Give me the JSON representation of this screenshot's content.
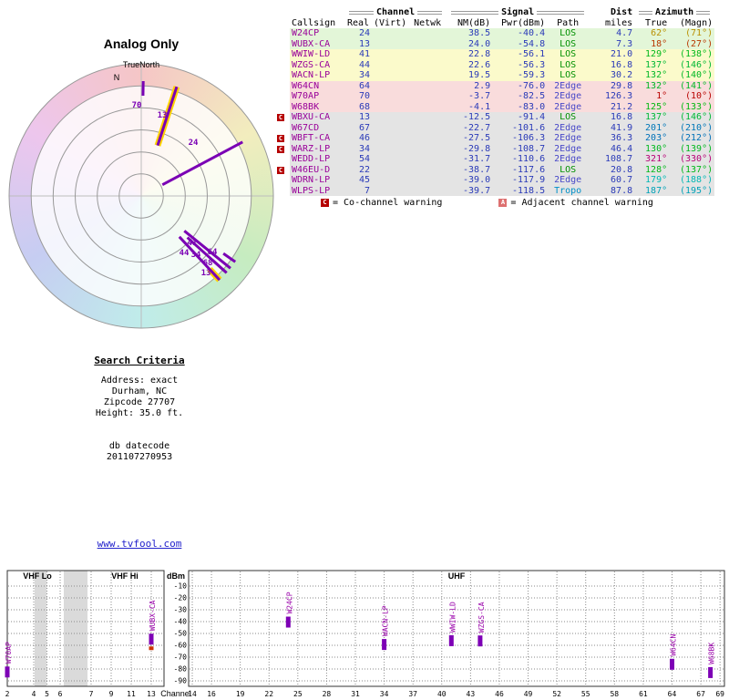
{
  "page": {
    "link": "www.tvfool.com"
  },
  "colors": {
    "callsign": "#990099",
    "numbers": "#2a3ab8",
    "path_los": "#009000",
    "path_2edge": "#4848c8",
    "path_tropo": "#0090c8",
    "warning_co": "#b50000",
    "warning_adjacent": "#dd7070",
    "station_marker": "#7d00b5",
    "station_label": "#9900aa",
    "spoke": "#7a00b4",
    "spoke_highlight": "#ffd400",
    "link": "#2222cc"
  },
  "polar": {
    "title": "Analog Only",
    "true_north_label": "TrueNorth",
    "north_label": "N"
  },
  "table": {
    "groups": {
      "channel": "Channel",
      "signal": "Signal",
      "dist": "Dist",
      "azimuth": "Azimuth"
    },
    "headers": {
      "callsign": "Callsign",
      "real": "Real",
      "virt": "(Virt)",
      "netwk": "Netwk",
      "nm": "NM(dB)",
      "pwr": "Pwr(dBm)",
      "path": "Path",
      "miles": "miles",
      "true_az": "True",
      "magn": "(Magn)"
    },
    "rows": [
      {
        "warnings": [],
        "callsign": "W24CP",
        "real": "24",
        "virt": "",
        "netwk": "",
        "nm": "38.5",
        "pwr": "-40.4",
        "path": "LOS",
        "miles": "4.7",
        "true_az": "62°",
        "magn": "(71°)",
        "band": "strong",
        "az_color": "#b99000"
      },
      {
        "warnings": [],
        "callsign": "WUBX-CA",
        "real": "13",
        "virt": "",
        "netwk": "",
        "nm": "24.0",
        "pwr": "-54.8",
        "path": "LOS",
        "miles": "7.3",
        "true_az": "18°",
        "magn": "(27°)",
        "band": "strong",
        "az_color": "#b83700"
      },
      {
        "warnings": [],
        "callsign": "WWIW-LD",
        "real": "41",
        "virt": "",
        "netwk": "",
        "nm": "22.8",
        "pwr": "-56.1",
        "path": "LOS",
        "miles": "21.0",
        "true_az": "129°",
        "magn": "(138°)",
        "band": "moderate",
        "az_color": "#00b81c"
      },
      {
        "warnings": [],
        "callsign": "WZGS-CA",
        "real": "44",
        "virt": "",
        "netwk": "",
        "nm": "22.6",
        "pwr": "-56.3",
        "path": "LOS",
        "miles": "16.8",
        "true_az": "137°",
        "magn": "(146°)",
        "band": "moderate",
        "az_color": "#00b834"
      },
      {
        "warnings": [],
        "callsign": "WACN-LP",
        "real": "34",
        "virt": "",
        "netwk": "",
        "nm": "19.5",
        "pwr": "-59.3",
        "path": "LOS",
        "miles": "30.2",
        "true_az": "132°",
        "magn": "(140°)",
        "band": "moderate",
        "az_color": "#00b824"
      },
      {
        "warnings": [],
        "callsign": "W64CN",
        "real": "64",
        "virt": "",
        "netwk": "",
        "nm": "2.9",
        "pwr": "-76.0",
        "path": "2Edge",
        "miles": "29.8",
        "true_az": "132°",
        "magn": "(141°)",
        "band": "weak",
        "az_color": "#00b824"
      },
      {
        "warnings": [],
        "callsign": "W70AP",
        "real": "70",
        "virt": "",
        "netwk": "",
        "nm": "-3.7",
        "pwr": "-82.5",
        "path": "2Edge",
        "miles": "126.3",
        "true_az": "1°",
        "magn": "(10°)",
        "band": "weak",
        "az_color": "#b80300"
      },
      {
        "warnings": [],
        "callsign": "W68BK",
        "real": "68",
        "virt": "",
        "netwk": "",
        "nm": "-4.1",
        "pwr": "-83.0",
        "path": "2Edge",
        "miles": "21.2",
        "true_az": "125°",
        "magn": "(133°)",
        "band": "weak",
        "az_color": "#00b80f"
      },
      {
        "warnings": [
          "C"
        ],
        "callsign": "WBXU-CA",
        "real": "13",
        "virt": "",
        "netwk": "",
        "nm": "-12.5",
        "pwr": "-91.4",
        "path": "LOS",
        "miles": "16.8",
        "true_az": "137°",
        "magn": "(146°)",
        "band": "poor",
        "az_color": "#00b834"
      },
      {
        "warnings": [],
        "callsign": "W67CD",
        "real": "67",
        "virt": "",
        "netwk": "",
        "nm": "-22.7",
        "pwr": "-101.6",
        "path": "2Edge",
        "miles": "41.9",
        "true_az": "201°",
        "magn": "(210°)",
        "band": "poor",
        "az_color": "#0077b8"
      },
      {
        "warnings": [
          "C"
        ],
        "callsign": "WBFT-CA",
        "real": "46",
        "virt": "",
        "netwk": "",
        "nm": "-27.5",
        "pwr": "-106.3",
        "path": "2Edge",
        "miles": "36.3",
        "true_az": "203°",
        "magn": "(212°)",
        "band": "poor",
        "az_color": "#0071b8"
      },
      {
        "warnings": [
          "C"
        ],
        "callsign": "WARZ-LP",
        "real": "34",
        "virt": "",
        "netwk": "",
        "nm": "-29.8",
        "pwr": "-108.7",
        "path": "2Edge",
        "miles": "46.4",
        "true_az": "130°",
        "magn": "(139°)",
        "band": "poor",
        "az_color": "#00b81f"
      },
      {
        "warnings": [],
        "callsign": "WEDD-LP",
        "real": "54",
        "virt": "",
        "netwk": "",
        "nm": "-31.7",
        "pwr": "-110.6",
        "path": "2Edge",
        "miles": "108.7",
        "true_az": "321°",
        "magn": "(330°)",
        "band": "poor",
        "az_color": "#b80077"
      },
      {
        "warnings": [
          "C"
        ],
        "callsign": "W46EU-D",
        "real": "22",
        "virt": "",
        "netwk": "",
        "nm": "-38.7",
        "pwr": "-117.6",
        "path": "LOS",
        "miles": "20.8",
        "true_az": "128°",
        "magn": "(137°)",
        "band": "poor",
        "az_color": "#00b818"
      },
      {
        "warnings": [],
        "callsign": "WDRN-LP",
        "real": "45",
        "virt": "",
        "netwk": "",
        "nm": "-39.0",
        "pwr": "-117.9",
        "path": "2Edge",
        "miles": "60.7",
        "true_az": "179°",
        "magn": "(188°)",
        "band": "poor",
        "az_color": "#00b8b4"
      },
      {
        "warnings": [],
        "callsign": "WLPS-LP",
        "real": "7",
        "virt": "",
        "netwk": "",
        "nm": "-39.7",
        "pwr": "-118.5",
        "path": "Tropo",
        "miles": "87.8",
        "true_az": "187°",
        "magn": "(195°)",
        "band": "poor",
        "az_color": "#00a2b8"
      }
    ]
  },
  "legend": {
    "c_symbol": "C",
    "c_text": "= Co-channel warning",
    "a_symbol": "A",
    "a_text": "= Adjacent channel warning"
  },
  "search": {
    "heading": "Search Criteria",
    "lines": [
      "Address: exact",
      "Durham, NC",
      "Zipcode 27707",
      "Height: 35.0 ft."
    ],
    "datecode": [
      "db datecode",
      "201107270953"
    ]
  },
  "chart_data": [
    {
      "type": "scatter",
      "subtype": "polar-azimuth-plot",
      "title": "Analog Only",
      "orientation_labels": {
        "axis": "TrueNorth",
        "north": "N"
      },
      "series": [
        {
          "name": "analog stations (channel label @ azimuth deg, strength NM dB)",
          "points": [
            {
              "label": "70",
              "azimuth_deg": 1,
              "nm_db": -3.7,
              "highlight": false
            },
            {
              "label": "13",
              "azimuth_deg": 18,
              "nm_db": 24.0,
              "highlight": true
            },
            {
              "label": "24",
              "azimuth_deg": 62,
              "nm_db": 38.5,
              "highlight": false
            },
            {
              "label": "41",
              "azimuth_deg": 129,
              "nm_db": 22.8,
              "highlight": false
            },
            {
              "label": "44",
              "azimuth_deg": 137,
              "nm_db": 22.6,
              "highlight": false
            },
            {
              "label": "34",
              "azimuth_deg": 132,
              "nm_db": 19.5,
              "highlight": false
            },
            {
              "label": "64",
              "azimuth_deg": 132,
              "nm_db": 2.9,
              "highlight": false
            },
            {
              "label": "68",
              "azimuth_deg": 125,
              "nm_db": -4.1,
              "highlight": false
            },
            {
              "label": "13",
              "azimuth_deg": 137,
              "nm_db": -12.5,
              "highlight": true
            }
          ]
        }
      ]
    },
    {
      "type": "scatter",
      "title": "",
      "xlabel": "Channel",
      "ylabel": "dBm",
      "ylim": [
        -95,
        -5
      ],
      "y_ticks": [
        -10,
        -20,
        -30,
        -40,
        -50,
        -60,
        -70,
        -80,
        -90
      ],
      "sections": [
        "VHF Lo",
        "VHF Hi",
        "UHF"
      ],
      "x_ticks_vhf": [
        2,
        4,
        5,
        6,
        7,
        9,
        11,
        13
      ],
      "x_ticks_uhf": [
        14,
        16,
        19,
        22,
        25,
        28,
        31,
        34,
        37,
        40,
        43,
        46,
        49,
        52,
        55,
        58,
        61,
        64,
        67,
        69
      ],
      "points": [
        {
          "label": "W70AP",
          "channel": 70,
          "dbm": -82.5,
          "at_left_edge": true
        },
        {
          "label": "WUBX-CA",
          "channel": 13,
          "dbm": -54.8,
          "warning_tick": true
        },
        {
          "label": "W24CP",
          "channel": 24,
          "dbm": -40.4
        },
        {
          "label": "WACN-LP",
          "channel": 34,
          "dbm": -59.3
        },
        {
          "label": "WWIW-LD",
          "channel": 41,
          "dbm": -56.1
        },
        {
          "label": "WZGS-CA",
          "channel": 44,
          "dbm": -56.3
        },
        {
          "label": "W64CN",
          "channel": 64,
          "dbm": -76.0
        },
        {
          "label": "W68BK",
          "channel": 68,
          "dbm": -83.0
        }
      ]
    }
  ]
}
